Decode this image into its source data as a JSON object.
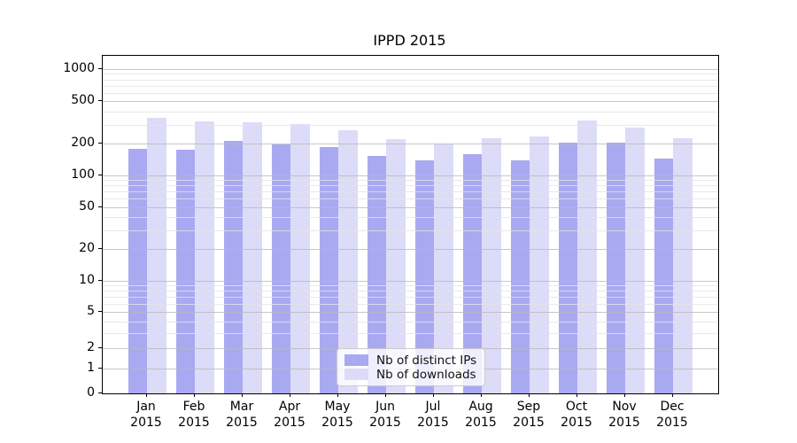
{
  "title": "IPPD 2015",
  "chart_data": {
    "type": "bar",
    "title": "IPPD 2015",
    "categories": [
      "Jan",
      "Feb",
      "Mar",
      "Apr",
      "May",
      "Jun",
      "Jul",
      "Aug",
      "Sep",
      "Oct",
      "Nov",
      "Dec"
    ],
    "category_year": "2015",
    "series": [
      {
        "name": "Nb of distinct IPs",
        "color": "#a9a9f2",
        "values": [
          178,
          175,
          212,
          196,
          183,
          152,
          138,
          158,
          138,
          204,
          201,
          143
        ]
      },
      {
        "name": "Nb of downloads",
        "color": "#dcdcf8",
        "values": [
          345,
          320,
          318,
          302,
          265,
          220,
          200,
          221,
          233,
          325,
          283,
          224
        ]
      }
    ],
    "y_scale": "asinh-symlog",
    "ylim": [
      0,
      1300
    ],
    "y_ticks_major": [
      0,
      1,
      2,
      5,
      10,
      20,
      50,
      100,
      200,
      500,
      1000
    ],
    "y_ticks_minor": [
      3,
      4,
      6,
      7,
      8,
      9,
      30,
      40,
      60,
      70,
      80,
      90,
      300,
      400,
      600,
      700,
      800,
      900
    ],
    "grid": "on",
    "legend_position": "lower center"
  },
  "colors": {
    "grid_major": "rgba(185,185,185,0.8)",
    "grid_minor": "rgba(228,228,228,0.8)",
    "spine": "#000000",
    "bar_dark": "#a9a9f2",
    "bar_light": "#dcdcf8"
  }
}
